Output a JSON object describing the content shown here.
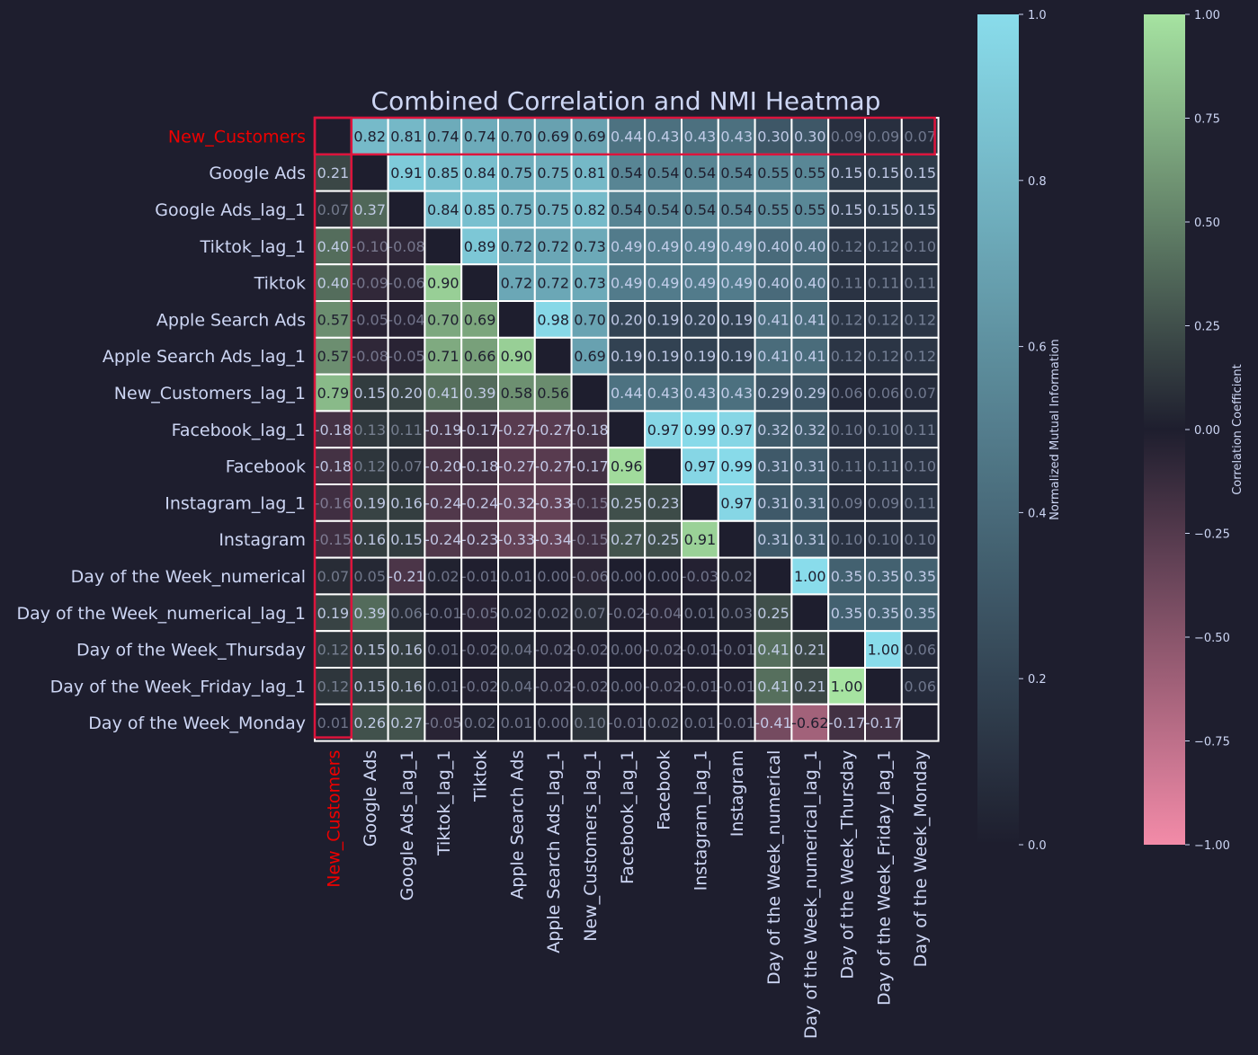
{
  "chart_data": {
    "type": "heatmap",
    "title": "Combined Correlation and NMI Heatmap",
    "target_label": "New_Customers",
    "labels": [
      "New_Customers",
      "Google Ads",
      "Google Ads_lag_1",
      "Tiktok_lag_1",
      "Tiktok",
      "Apple Search Ads",
      "Apple Search Ads_lag_1",
      "New_Customers_lag_1",
      "Facebook_lag_1",
      "Facebook",
      "Instagram_lag_1",
      "Instagram",
      "Day of the Week_numerical",
      "Day of the Week_numerical_lag_1",
      "Day of the Week_Thursday",
      "Day of the Week_Friday_lag_1",
      "Day of the Week_Monday"
    ],
    "upper_triangle_metric": "Normalized Mutual Information",
    "lower_triangle_metric": "Correlation Coefficient",
    "matrix": [
      [
        null,
        0.82,
        0.81,
        0.74,
        0.74,
        0.7,
        0.69,
        0.69,
        0.44,
        0.43,
        0.43,
        0.43,
        0.3,
        0.3,
        0.09,
        0.09,
        0.07
      ],
      [
        0.21,
        null,
        0.91,
        0.85,
        0.84,
        0.75,
        0.75,
        0.81,
        0.54,
        0.54,
        0.54,
        0.54,
        0.55,
        0.55,
        0.15,
        0.15,
        0.15
      ],
      [
        0.07,
        0.37,
        null,
        0.84,
        0.85,
        0.75,
        0.75,
        0.82,
        0.54,
        0.54,
        0.54,
        0.54,
        0.55,
        0.55,
        0.15,
        0.15,
        0.15
      ],
      [
        0.4,
        -0.1,
        -0.08,
        null,
        0.89,
        0.72,
        0.72,
        0.73,
        0.49,
        0.49,
        0.49,
        0.49,
        0.4,
        0.4,
        0.12,
        0.12,
        0.1
      ],
      [
        0.4,
        -0.09,
        -0.06,
        0.9,
        null,
        0.72,
        0.72,
        0.73,
        0.49,
        0.49,
        0.49,
        0.49,
        0.4,
        0.4,
        0.11,
        0.11,
        0.11
      ],
      [
        0.57,
        -0.05,
        -0.04,
        0.7,
        0.69,
        null,
        0.98,
        0.7,
        0.2,
        0.19,
        0.2,
        0.19,
        0.41,
        0.41,
        0.12,
        0.12,
        0.12
      ],
      [
        0.57,
        -0.08,
        -0.05,
        0.71,
        0.66,
        0.9,
        null,
        0.69,
        0.19,
        0.19,
        0.19,
        0.19,
        0.41,
        0.41,
        0.12,
        0.12,
        0.12
      ],
      [
        0.79,
        0.15,
        0.2,
        0.41,
        0.39,
        0.58,
        0.56,
        null,
        0.44,
        0.43,
        0.43,
        0.43,
        0.29,
        0.29,
        0.06,
        0.06,
        0.07
      ],
      [
        -0.18,
        0.13,
        0.11,
        -0.19,
        -0.17,
        -0.27,
        -0.27,
        -0.18,
        null,
        0.97,
        0.99,
        0.97,
        0.32,
        0.32,
        0.1,
        0.1,
        0.11
      ],
      [
        -0.18,
        0.12,
        0.07,
        -0.2,
        -0.18,
        -0.27,
        -0.27,
        -0.17,
        0.96,
        null,
        0.97,
        0.99,
        0.31,
        0.31,
        0.11,
        0.11,
        0.1
      ],
      [
        -0.16,
        0.19,
        0.16,
        -0.24,
        -0.24,
        -0.32,
        -0.33,
        -0.15,
        0.25,
        0.23,
        null,
        0.97,
        0.31,
        0.31,
        0.09,
        0.09,
        0.11
      ],
      [
        -0.15,
        0.16,
        0.15,
        -0.24,
        -0.23,
        -0.33,
        -0.34,
        -0.15,
        0.27,
        0.25,
        0.91,
        null,
        0.31,
        0.31,
        0.1,
        0.1,
        0.1
      ],
      [
        0.07,
        0.05,
        -0.21,
        0.02,
        -0.01,
        0.01,
        0.0,
        -0.06,
        -0.0,
        -0.0,
        -0.03,
        0.02,
        null,
        1.0,
        0.35,
        0.35,
        0.35
      ],
      [
        0.19,
        0.39,
        0.06,
        -0.01,
        -0.05,
        0.02,
        0.02,
        0.07,
        -0.02,
        -0.04,
        0.01,
        0.03,
        0.25,
        null,
        0.35,
        0.35,
        0.35
      ],
      [
        0.12,
        0.15,
        0.16,
        0.01,
        -0.02,
        0.04,
        -0.02,
        -0.02,
        0.0,
        -0.02,
        -0.01,
        -0.01,
        0.41,
        0.21,
        null,
        1.0,
        0.06
      ],
      [
        0.12,
        0.15,
        0.16,
        0.01,
        -0.02,
        0.04,
        -0.02,
        -0.02,
        0.0,
        -0.02,
        -0.01,
        -0.01,
        0.41,
        0.21,
        1.0,
        null,
        0.06
      ],
      [
        0.01,
        0.26,
        0.27,
        -0.05,
        0.02,
        0.01,
        -0.0,
        0.1,
        -0.01,
        0.02,
        0.01,
        -0.01,
        -0.41,
        -0.62,
        -0.17,
        -0.17,
        null
      ]
    ],
    "colorbars": [
      {
        "label": "Normalized Mutual Information",
        "range": [
          0,
          1
        ],
        "ticks": [
          "0.0",
          "0.2",
          "0.4",
          "0.6",
          "0.8",
          "1.0"
        ],
        "tick_values": [
          0,
          0.2,
          0.4,
          0.6,
          0.8,
          1.0
        ]
      },
      {
        "label": "Correlation Coefficient",
        "range": [
          -1,
          1
        ],
        "ticks": [
          "−1.00",
          "−0.75",
          "−0.50",
          "−0.25",
          "0.00",
          "0.25",
          "0.50",
          "0.75",
          "1.00"
        ],
        "tick_values": [
          -1,
          -0.75,
          -0.5,
          -0.25,
          0,
          0.25,
          0.5,
          0.75,
          1.0
        ]
      }
    ],
    "colors": {
      "background": "#1e1e2e",
      "nmi_low": "#1e1e2e",
      "nmi_high": "#89dceb",
      "corr_negative": "#f38ba8",
      "corr_zero": "#1e1e2e",
      "corr_positive": "#a6e3a1",
      "text": "#cdd6f4",
      "target_highlight": "#ee0000",
      "target_box": "#dc143c",
      "grid": "#ffffff"
    }
  }
}
